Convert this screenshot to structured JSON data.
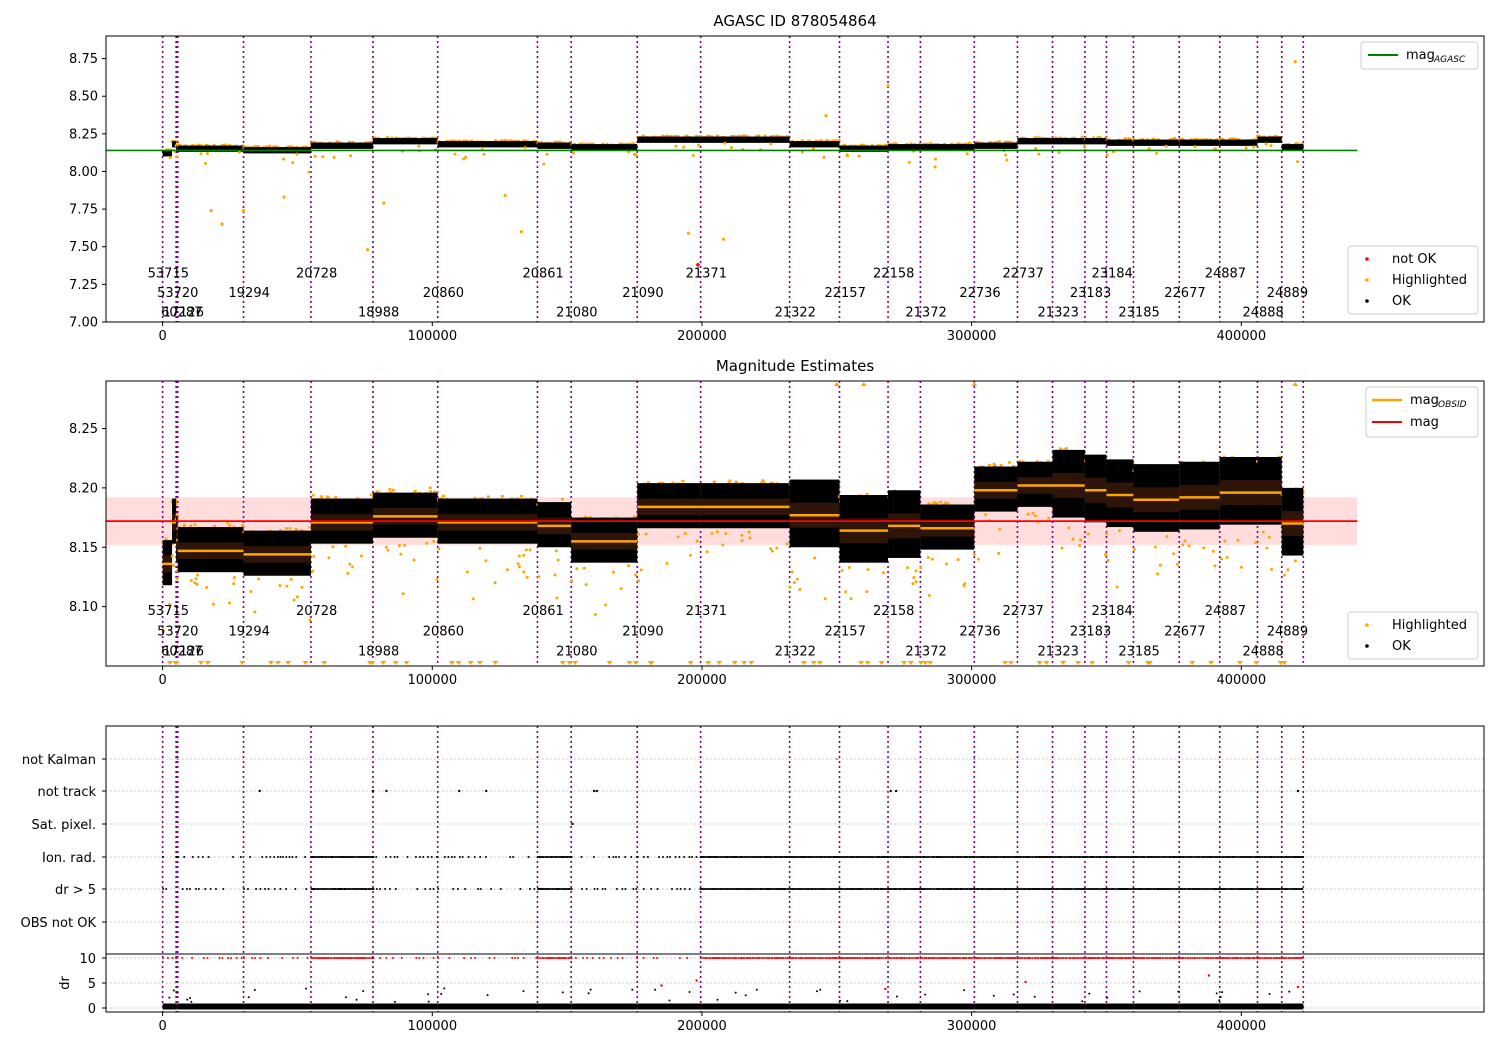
{
  "chart_data": [
    {
      "type": "scatter",
      "title": "AGASC ID 878054864",
      "xlim": [
        -21000,
        490000
      ],
      "ylim": [
        7.0,
        8.9
      ],
      "x_ticks": [
        0,
        100000,
        200000,
        300000,
        400000
      ],
      "x_tick_labels": [
        "0",
        "100000",
        "200000",
        "300000",
        "400000"
      ],
      "y_ticks": [
        7.0,
        7.25,
        7.5,
        7.75,
        8.0,
        8.25,
        8.5,
        8.75
      ],
      "y_tick_labels": [
        "7.00",
        "7.25",
        "7.50",
        "7.75",
        "8.00",
        "8.25",
        "8.50",
        "8.75"
      ],
      "agasc_line": {
        "name": "mag_AGASC",
        "label": "mag",
        "subscript": "AGASC",
        "value": 8.14,
        "x_end": 443000,
        "color": "#008000"
      },
      "scatter_legend": [
        {
          "label": "not OK",
          "color": "#ff0000"
        },
        {
          "label": "Highlighted",
          "color": "#ffa500"
        },
        {
          "label": "OK",
          "color": "#000000"
        }
      ],
      "annotation_y": [
        7.33,
        7.2,
        7.07
      ],
      "segment_mags": [
        8.13,
        8.19,
        8.16,
        8.16,
        8.15,
        8.18,
        8.21,
        8.19,
        8.18,
        8.17,
        8.22,
        8.22,
        8.19,
        8.16,
        8.17,
        8.17,
        8.18,
        8.21,
        8.21,
        8.21,
        8.2,
        8.2,
        8.2,
        8.2,
        8.22
      ]
    },
    {
      "type": "scatter",
      "title": "Magnitude Estimates",
      "xlim": [
        -21000,
        490000
      ],
      "ylim": [
        8.05,
        8.29
      ],
      "x_ticks": [
        0,
        100000,
        200000,
        300000,
        400000
      ],
      "x_tick_labels": [
        "0",
        "100000",
        "200000",
        "300000",
        "400000"
      ],
      "y_ticks": [
        8.1,
        8.15,
        8.2,
        8.25
      ],
      "y_tick_labels": [
        "8.10",
        "8.15",
        "8.20",
        "8.25"
      ],
      "mag": {
        "value": 8.172,
        "band": [
          8.152,
          8.192
        ],
        "x_end": 443000,
        "color": "#ff0000",
        "band_color": "#ffdddd"
      },
      "legend_lines": [
        {
          "label": "mag",
          "subscript": "OBSID",
          "color": "#ffa500"
        },
        {
          "label": "mag",
          "subscript": "",
          "color": "#ff0000"
        }
      ],
      "scatter_legend": [
        {
          "label": "Highlighted",
          "color": "#ffa500"
        },
        {
          "label": "OK",
          "color": "#000000"
        }
      ],
      "annotation_y": [
        8.097,
        8.08,
        8.063
      ],
      "segment_mags": [
        8.136,
        8.171,
        8.156,
        8.147,
        8.144,
        8.171,
        8.176,
        8.171,
        8.168,
        8.155,
        8.184,
        8.184,
        8.177,
        8.164,
        8.168,
        8.166,
        8.198,
        8.202,
        8.202,
        8.198,
        8.194,
        8.19,
        8.192,
        8.196,
        8.196
      ]
    },
    {
      "type": "scatter",
      "title": "",
      "xlim": [
        -21000,
        490000
      ],
      "x_ticks": [
        0,
        100000,
        200000,
        300000,
        400000
      ],
      "x_tick_labels": [
        "0",
        "100000",
        "200000",
        "300000",
        "400000"
      ],
      "flag_rows": [
        "not Kalman",
        "not track",
        "Sat. pixel.",
        "Ion. rad.",
        "dr > 5",
        "OBS not OK"
      ],
      "dr_ylabel": "dr",
      "dr_ticks": [
        0,
        5,
        10
      ],
      "dr_tick_labels": [
        "0",
        "5",
        "10"
      ],
      "dr_ylim": [
        -0.8,
        10.8
      ]
    }
  ],
  "observations": [
    {
      "obsid": "53715",
      "start": 0,
      "end": 3500,
      "row": 0
    },
    {
      "obsid": "53720",
      "start": 3500,
      "end": 5000,
      "row": 1
    },
    {
      "obsid": "60287",
      "start": 5000,
      "end": 5600,
      "row": 2
    },
    {
      "obsid": "17126",
      "start": 5600,
      "end": 30000,
      "row": 2
    },
    {
      "obsid": "19294",
      "start": 30000,
      "end": 55000,
      "row": 1
    },
    {
      "obsid": "20728",
      "start": 55000,
      "end": 78000,
      "row": 0
    },
    {
      "obsid": "18988",
      "start": 78000,
      "end": 102000,
      "row": 2
    },
    {
      "obsid": "20860",
      "start": 102000,
      "end": 139000,
      "row": 1
    },
    {
      "obsid": "20861",
      "start": 139000,
      "end": 151500,
      "row": 0
    },
    {
      "obsid": "21080",
      "start": 151500,
      "end": 176000,
      "row": 2
    },
    {
      "obsid": "21090",
      "start": 176000,
      "end": 199500,
      "row": 1
    },
    {
      "obsid": "21371",
      "start": 199500,
      "end": 232500,
      "row": 0
    },
    {
      "obsid": "21322",
      "start": 232500,
      "end": 251000,
      "row": 2
    },
    {
      "obsid": "22157",
      "start": 251000,
      "end": 269000,
      "row": 1
    },
    {
      "obsid": "22158",
      "start": 269000,
      "end": 281000,
      "row": 0
    },
    {
      "obsid": "21372",
      "start": 281000,
      "end": 301000,
      "row": 2
    },
    {
      "obsid": "22736",
      "start": 301000,
      "end": 317000,
      "row": 1
    },
    {
      "obsid": "22737",
      "start": 317000,
      "end": 330000,
      "row": 0
    },
    {
      "obsid": "21323",
      "start": 330000,
      "end": 342000,
      "row": 2
    },
    {
      "obsid": "23183",
      "start": 342000,
      "end": 350000,
      "row": 1
    },
    {
      "obsid": "23184",
      "start": 350000,
      "end": 360000,
      "row": 0
    },
    {
      "obsid": "23185",
      "start": 360000,
      "end": 377000,
      "row": 2
    },
    {
      "obsid": "22677",
      "start": 377000,
      "end": 392000,
      "row": 1
    },
    {
      "obsid": "24887",
      "start": 392000,
      "end": 406000,
      "row": 0
    },
    {
      "obsid": "24888",
      "start": 406000,
      "end": 415000,
      "row": 2
    },
    {
      "obsid": "24889",
      "start": 415000,
      "end": 423000,
      "row": 1
    }
  ],
  "boundaries": [
    0,
    5000,
    5300,
    5600,
    30000,
    55000,
    78000,
    102000,
    139000,
    151500,
    176000,
    199500,
    232500,
    251000,
    269000,
    281000,
    301000,
    317000,
    330000,
    342000,
    350000,
    360000,
    377000,
    392000,
    406000,
    415000,
    423000
  ],
  "colors": {
    "boundary": "#800080",
    "highlight": "#ffa500",
    "ok": "#000000",
    "notok": "#ff0000"
  }
}
